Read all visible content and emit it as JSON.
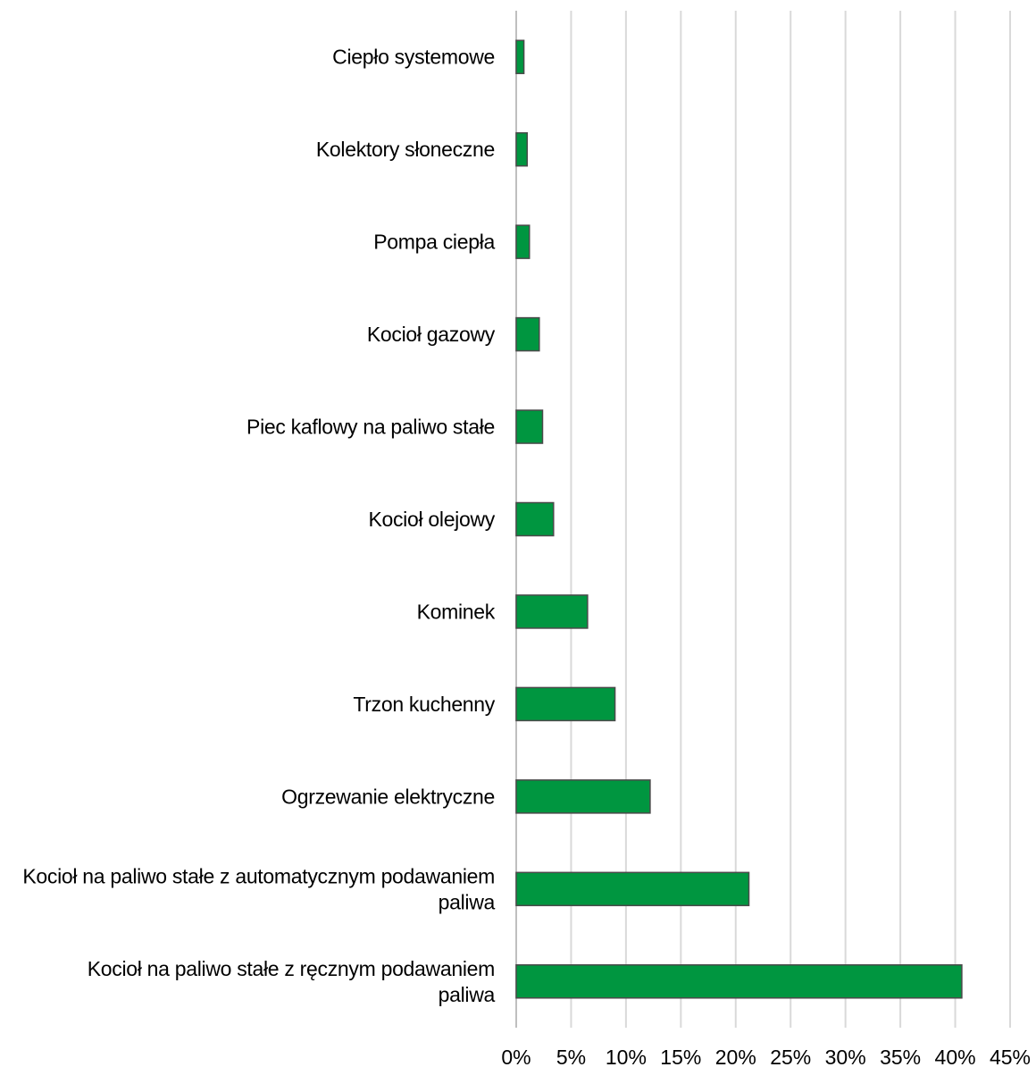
{
  "chart_data": {
    "type": "bar",
    "orientation": "horizontal",
    "title": "",
    "xlabel": "",
    "ylabel": "",
    "xlim": [
      0,
      45
    ],
    "x_ticks": [
      0,
      5,
      10,
      15,
      20,
      25,
      30,
      35,
      40,
      45
    ],
    "x_tick_labels": [
      "0%",
      "5%",
      "10%",
      "15%",
      "20%",
      "25%",
      "30%",
      "35%",
      "40%",
      "45%"
    ],
    "grid": true,
    "legend": "none",
    "bar_color": "#009640",
    "bar_border_color": "#4a4a4a",
    "categories": [
      [
        "Ciepło systemowe"
      ],
      [
        "Kolektory słoneczne"
      ],
      [
        "Pompa ciepła"
      ],
      [
        "Kocioł gazowy"
      ],
      [
        "Piec kaflowy na paliwo stałe"
      ],
      [
        "Kocioł olejowy"
      ],
      [
        "Kominek"
      ],
      [
        "Trzon kuchenny"
      ],
      [
        "Ogrzewanie elektryczne"
      ],
      [
        "Kocioł na paliwo stałe z automatycznym podawaniem",
        "paliwa"
      ],
      [
        "Kocioł na paliwo stałe  z ręcznym podawaniem",
        "paliwa"
      ]
    ],
    "values": [
      0.7,
      1.0,
      1.2,
      2.1,
      2.4,
      3.4,
      6.5,
      9.0,
      12.2,
      21.2,
      40.6
    ]
  }
}
